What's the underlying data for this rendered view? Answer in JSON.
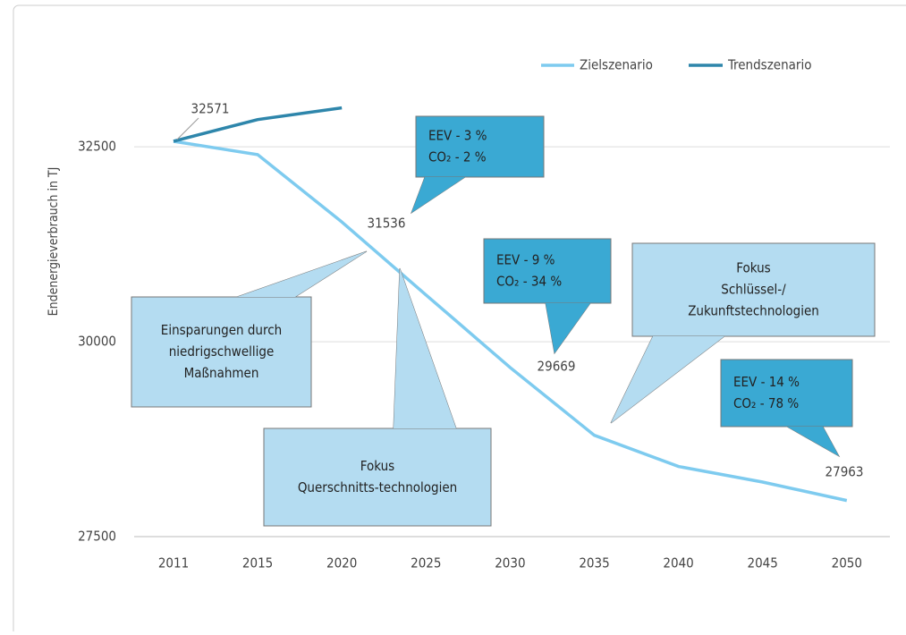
{
  "chart_data": {
    "type": "line",
    "y_label": "Endenergieverbrauch in TJ",
    "categories": [
      "2011",
      "2015",
      "2020",
      "2025",
      "2030",
      "2035",
      "2040",
      "2045",
      "2050"
    ],
    "series": [
      {
        "name": "Zielszenario",
        "color": "#7ecbef",
        "values": [
          32571,
          32400,
          31536,
          30600,
          29669,
          28800,
          28400,
          28200,
          27963
        ]
      },
      {
        "name": "Trendszenario",
        "color": "#2e86ab",
        "values": [
          32571,
          32850,
          33000,
          null,
          null,
          null,
          null,
          null,
          null
        ]
      }
    ],
    "ylim": [
      27500,
      33500
    ],
    "yticks": [
      27500,
      30000,
      32500
    ],
    "grid": true,
    "legend": "top-right",
    "annotations": [
      {
        "lines": [
          "Einsparungen durch",
          "niedrigschwellige",
          "Maßnahmen"
        ]
      },
      {
        "lines": [
          "Fokus",
          "Querschnitts-technologien"
        ]
      },
      {
        "lines": [
          "EEV - 3 %",
          "CO₂ - 2 %"
        ]
      },
      {
        "lines": [
          "EEV - 9 %",
          "CO₂ - 34 %"
        ]
      },
      {
        "lines": [
          "Fokus",
          "Schlüssel-/",
          "Zukunftstechnologien"
        ]
      },
      {
        "lines": [
          "EEV - 14 %",
          "CO₂ - 78 %"
        ]
      }
    ]
  }
}
